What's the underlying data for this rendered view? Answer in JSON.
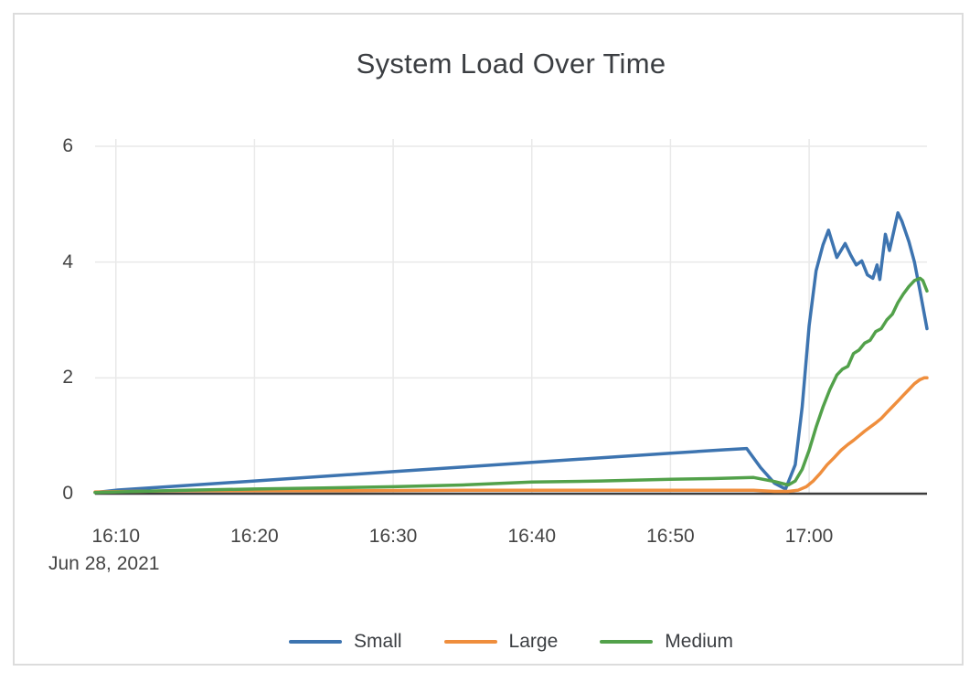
{
  "chart_data": {
    "type": "line",
    "title": "System Load Over Time",
    "x_axis": {
      "date_label": "Jun 28, 2021",
      "unit": "minutes after 16:00",
      "range_minutes": [
        8.5,
        68.5
      ],
      "ticks": [
        {
          "t": 10,
          "label": "16:10"
        },
        {
          "t": 20,
          "label": "16:20"
        },
        {
          "t": 30,
          "label": "16:30"
        },
        {
          "t": 40,
          "label": "16:40"
        },
        {
          "t": 50,
          "label": "16:50"
        },
        {
          "t": 60,
          "label": "17:00"
        }
      ]
    },
    "y_axis": {
      "range": [
        0,
        6
      ],
      "ticks": [
        0,
        2,
        4,
        6
      ]
    },
    "grid": {
      "on": true,
      "line_color": "#e9e9e9",
      "zero_line_color": "#3d3d3d"
    },
    "legend_position": "bottom-center",
    "series": [
      {
        "name": "Small",
        "color": "#3d74b0",
        "points": [
          [
            8.5,
            0.02
          ],
          [
            10,
            0.06
          ],
          [
            15,
            0.14
          ],
          [
            20,
            0.22
          ],
          [
            25,
            0.3
          ],
          [
            30,
            0.38
          ],
          [
            35,
            0.46
          ],
          [
            40,
            0.54
          ],
          [
            45,
            0.62
          ],
          [
            50,
            0.7
          ],
          [
            54,
            0.76
          ],
          [
            55.5,
            0.78
          ],
          [
            56.5,
            0.45
          ],
          [
            57.5,
            0.18
          ],
          [
            58.3,
            0.08
          ],
          [
            59,
            0.5
          ],
          [
            59.5,
            1.5
          ],
          [
            60,
            2.9
          ],
          [
            60.5,
            3.85
          ],
          [
            61,
            4.3
          ],
          [
            61.4,
            4.55
          ],
          [
            62,
            4.08
          ],
          [
            62.6,
            4.32
          ],
          [
            63,
            4.12
          ],
          [
            63.4,
            3.95
          ],
          [
            63.8,
            4.02
          ],
          [
            64.2,
            3.78
          ],
          [
            64.6,
            3.72
          ],
          [
            64.9,
            3.95
          ],
          [
            65.1,
            3.7
          ],
          [
            65.5,
            4.48
          ],
          [
            65.8,
            4.2
          ],
          [
            66.4,
            4.85
          ],
          [
            66.7,
            4.7
          ],
          [
            67.2,
            4.35
          ],
          [
            67.6,
            4.0
          ],
          [
            68.0,
            3.5
          ],
          [
            68.5,
            2.85
          ]
        ]
      },
      {
        "name": "Large",
        "color": "#ef8e3d",
        "points": [
          [
            8.5,
            0.03
          ],
          [
            15,
            0.05
          ],
          [
            25,
            0.05
          ],
          [
            35,
            0.06
          ],
          [
            45,
            0.06
          ],
          [
            53,
            0.06
          ],
          [
            56,
            0.06
          ],
          [
            57.5,
            0.04
          ],
          [
            58.5,
            0.04
          ],
          [
            59.2,
            0.06
          ],
          [
            59.8,
            0.12
          ],
          [
            60.3,
            0.22
          ],
          [
            60.8,
            0.35
          ],
          [
            61.3,
            0.5
          ],
          [
            61.8,
            0.62
          ],
          [
            62.3,
            0.75
          ],
          [
            62.8,
            0.85
          ],
          [
            63.2,
            0.92
          ],
          [
            63.6,
            1.0
          ],
          [
            64,
            1.08
          ],
          [
            64.4,
            1.15
          ],
          [
            64.8,
            1.22
          ],
          [
            65.2,
            1.3
          ],
          [
            65.6,
            1.4
          ],
          [
            66,
            1.5
          ],
          [
            66.4,
            1.6
          ],
          [
            66.8,
            1.7
          ],
          [
            67.2,
            1.8
          ],
          [
            67.6,
            1.9
          ],
          [
            68,
            1.97
          ],
          [
            68.3,
            2.0
          ],
          [
            68.5,
            2.0
          ]
        ]
      },
      {
        "name": "Medium",
        "color": "#52a14a",
        "points": [
          [
            8.5,
            0.02
          ],
          [
            15,
            0.06
          ],
          [
            20,
            0.08
          ],
          [
            25,
            0.1
          ],
          [
            30,
            0.12
          ],
          [
            35,
            0.15
          ],
          [
            40,
            0.2
          ],
          [
            45,
            0.22
          ],
          [
            50,
            0.25
          ],
          [
            53,
            0.26
          ],
          [
            56,
            0.28
          ],
          [
            57.5,
            0.21
          ],
          [
            58.5,
            0.15
          ],
          [
            59,
            0.22
          ],
          [
            59.5,
            0.42
          ],
          [
            60,
            0.75
          ],
          [
            60.5,
            1.15
          ],
          [
            61,
            1.5
          ],
          [
            61.5,
            1.8
          ],
          [
            62,
            2.05
          ],
          [
            62.4,
            2.15
          ],
          [
            62.8,
            2.2
          ],
          [
            63.2,
            2.42
          ],
          [
            63.6,
            2.48
          ],
          [
            64,
            2.6
          ],
          [
            64.4,
            2.65
          ],
          [
            64.8,
            2.8
          ],
          [
            65.2,
            2.85
          ],
          [
            65.6,
            3.0
          ],
          [
            66,
            3.1
          ],
          [
            66.4,
            3.3
          ],
          [
            66.8,
            3.45
          ],
          [
            67.2,
            3.58
          ],
          [
            67.6,
            3.68
          ],
          [
            68,
            3.72
          ],
          [
            68.2,
            3.68
          ],
          [
            68.5,
            3.5
          ]
        ]
      }
    ]
  }
}
